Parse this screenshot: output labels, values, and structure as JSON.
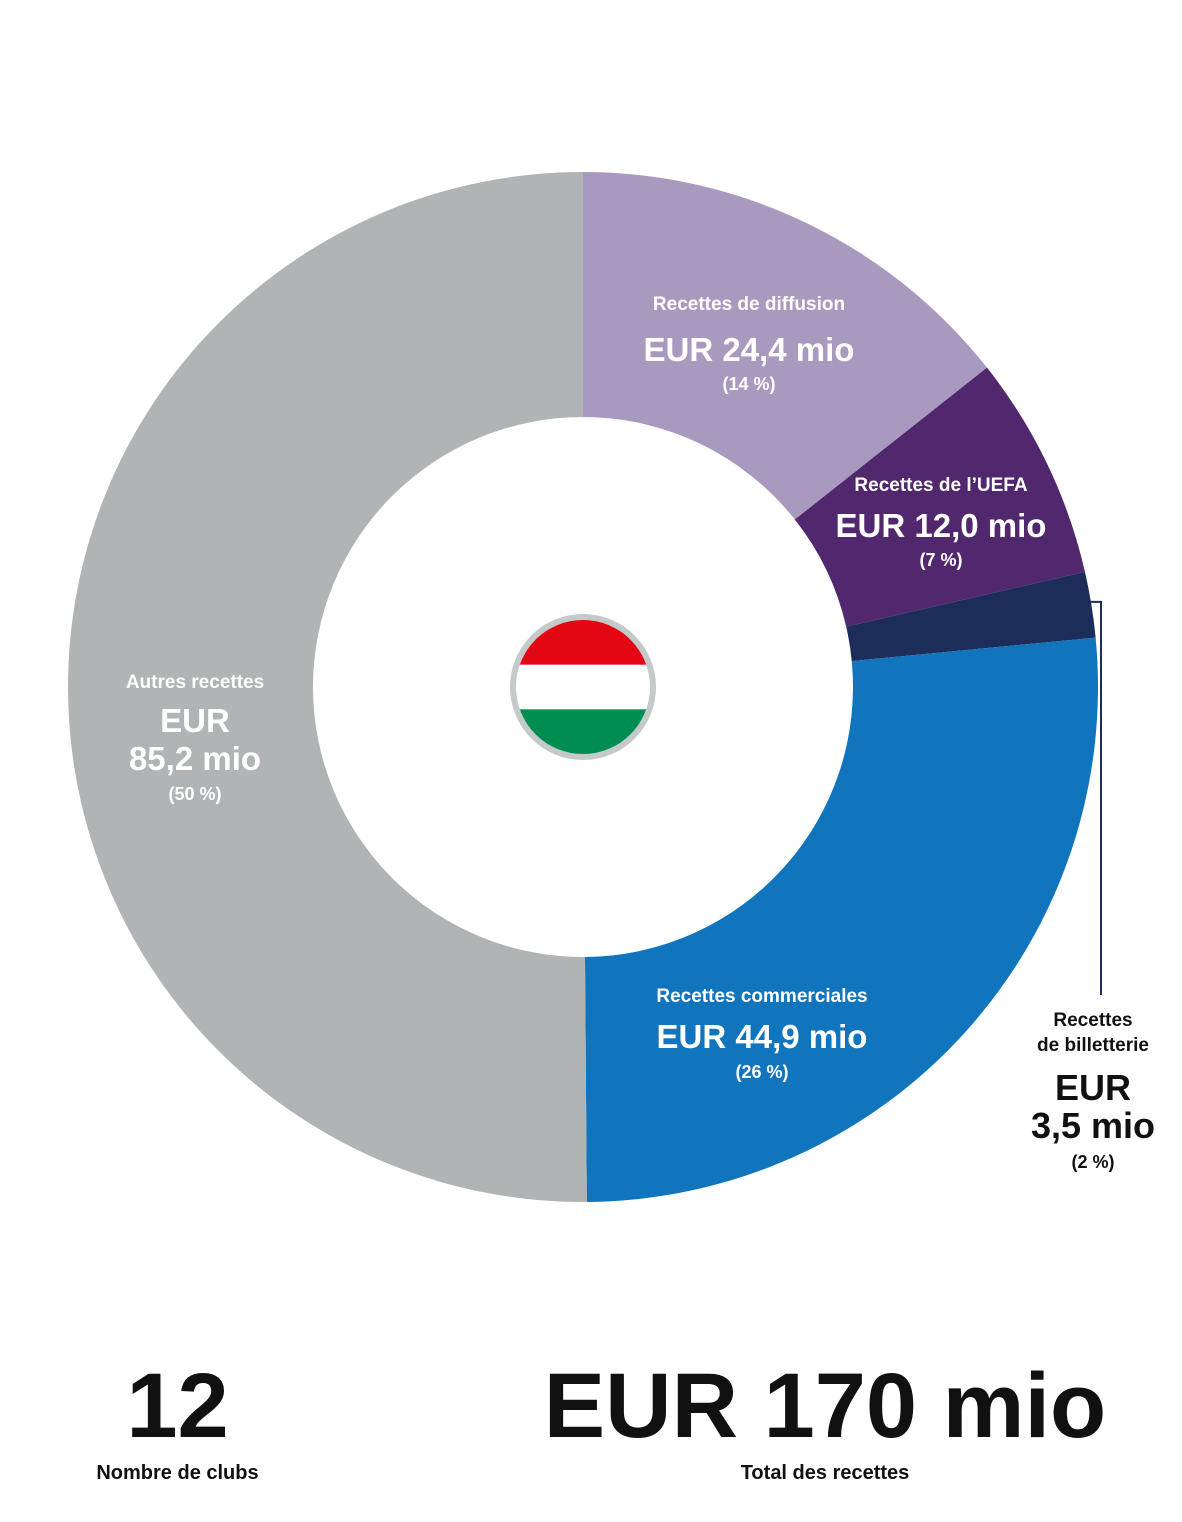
{
  "chart_data": {
    "type": "pie",
    "variant": "donut",
    "unit": "EUR mio",
    "segments": [
      {
        "key": "broadcast",
        "label": "Recettes de diffusion",
        "amount_text": "EUR 24,4 mio",
        "value": 24.4,
        "percent_text": "(14 %)",
        "percent": 14,
        "color": "#a89abf",
        "label_color": "#ffffff"
      },
      {
        "key": "uefa",
        "label": "Recettes de l’UEFA",
        "amount_text": "EUR 12,0 mio",
        "value": 12.0,
        "percent_text": "(7 %)",
        "percent": 7,
        "color": "#51286e",
        "label_color": "#ffffff"
      },
      {
        "key": "ticketing",
        "label": "Recettes de billetterie",
        "label_lines": [
          "Recettes",
          "de billetterie"
        ],
        "amount_text": "EUR 3,5 mio",
        "amount_lines": [
          "EUR",
          "3,5 mio"
        ],
        "value": 3.5,
        "percent_text": "(2 %)",
        "percent": 2,
        "color": "#1c2d5a",
        "label_color": "#111111",
        "label_outside": true
      },
      {
        "key": "commercial",
        "label": "Recettes commerciales",
        "amount_text": "EUR 44,9 mio",
        "value": 44.9,
        "percent_text": "(26 %)",
        "percent": 26,
        "color": "#1175be",
        "label_color": "#ffffff"
      },
      {
        "key": "other",
        "label": "Autres recettes",
        "amount_text": "EUR 85,2 mio",
        "amount_lines": [
          "EUR",
          "85,2 mio"
        ],
        "value": 85.2,
        "percent_text": "(50 %)",
        "percent": 50,
        "color": "#b1b4b4",
        "label_color": "#ffffff"
      }
    ],
    "center_icon": "hungary-flag-icon",
    "flag_colors": [
      "#e30613",
      "#ffffff",
      "#008d52"
    ],
    "flag_ring_color": "#c4c9ca",
    "leader_line_color": "#1c2d5a"
  },
  "stats": {
    "clubs_value": "12",
    "clubs_label": "Nombre de clubs",
    "total_value": "EUR 170 mio",
    "total_label": "Total des recettes"
  }
}
